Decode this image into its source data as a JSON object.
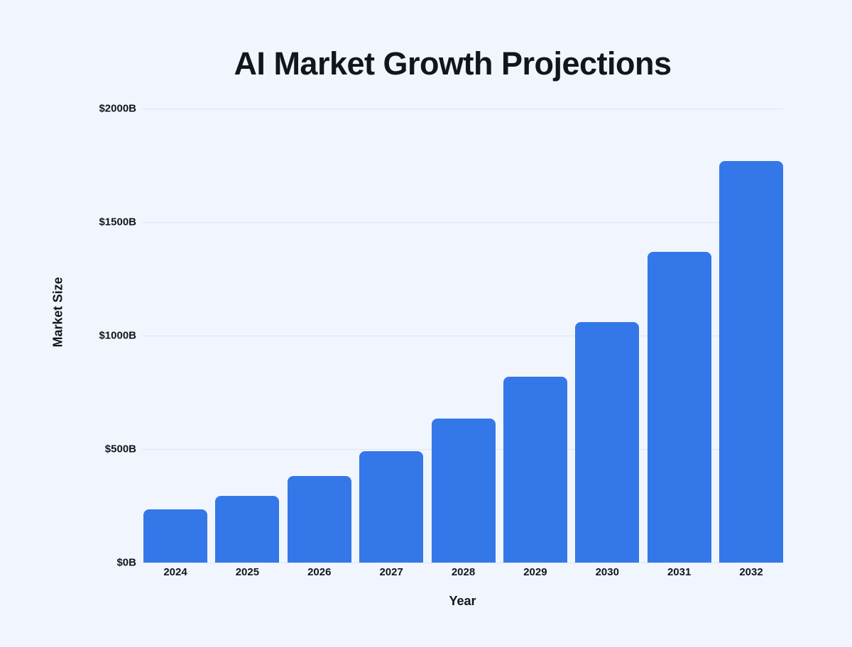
{
  "page": {
    "background_color": "#f1f5fd",
    "text_color": "#12161c"
  },
  "chart_data": {
    "type": "bar",
    "title": "AI Market Growth Projections",
    "xlabel": "Year",
    "ylabel": "Market Size",
    "categories": [
      "2024",
      "2025",
      "2026",
      "2027",
      "2028",
      "2029",
      "2030",
      "2031",
      "2032"
    ],
    "values": [
      235,
      295,
      380,
      490,
      635,
      820,
      1060,
      1370,
      1770
    ],
    "ylim": [
      0,
      2000
    ],
    "ytick_step": 500,
    "yticks": [
      0,
      500,
      1000,
      1500,
      2000
    ],
    "ytick_labels": [
      "$0B",
      "$500B",
      "$1000B",
      "$1500B",
      "$2000B"
    ],
    "grid": true,
    "legend_position": "none",
    "bar_color": "#3477e8",
    "gridline_color": "#e2e7ea"
  }
}
